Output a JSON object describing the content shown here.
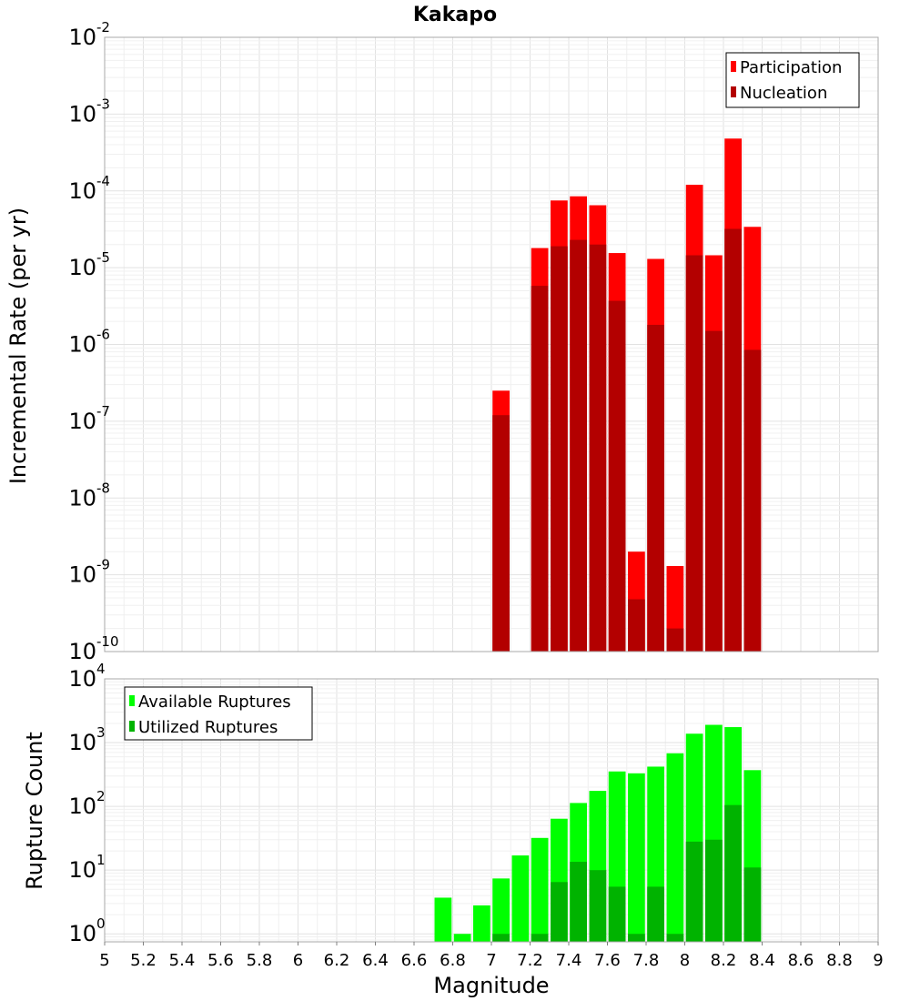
{
  "chart_data": [
    {
      "type": "bar",
      "title": "Kakapo",
      "ylabel": "Incremental Rate (per yr)",
      "yscale": "log",
      "ylim": [
        1e-10,
        0.01
      ],
      "xlim": [
        5,
        9
      ],
      "grid": true,
      "legend_position": "top-right",
      "y_ticks": [
        {
          "base": "10",
          "exp": "-2"
        },
        {
          "base": "10",
          "exp": "-3"
        },
        {
          "base": "10",
          "exp": "-4"
        },
        {
          "base": "10",
          "exp": "-5"
        },
        {
          "base": "10",
          "exp": "-6"
        },
        {
          "base": "10",
          "exp": "-7"
        },
        {
          "base": "10",
          "exp": "-8"
        },
        {
          "base": "10",
          "exp": "-9"
        },
        {
          "base": "10",
          "exp": "-10"
        }
      ],
      "x": [
        7.05,
        7.25,
        7.35,
        7.45,
        7.55,
        7.65,
        7.75,
        7.85,
        7.95,
        8.05,
        8.15,
        8.25,
        8.35
      ],
      "series": [
        {
          "name": "Participation",
          "color": "#ff0000",
          "values": [
            2.5e-07,
            1.8e-05,
            7.5e-05,
            8.5e-05,
            6.5e-05,
            1.55e-05,
            2e-09,
            1.3e-05,
            1.3e-09,
            0.00012,
            1.45e-05,
            0.00048,
            3.4e-05
          ]
        },
        {
          "name": "Nucleation",
          "color": "#b30000",
          "values": [
            1.2e-07,
            5.8e-06,
            1.9e-05,
            2.3e-05,
            2e-05,
            3.7e-06,
            4.8e-10,
            1.8e-06,
            2e-10,
            1.45e-05,
            1.5e-06,
            3.2e-05,
            8.5e-07
          ]
        }
      ]
    },
    {
      "type": "bar",
      "xlabel": "Magnitude",
      "ylabel": "Rupture Count",
      "yscale": "log",
      "ylim": [
        0.75,
        10000
      ],
      "xlim": [
        5,
        9
      ],
      "grid": true,
      "legend_position": "top-left",
      "y_ticks": [
        {
          "base": "10",
          "exp": "4"
        },
        {
          "base": "10",
          "exp": "3"
        },
        {
          "base": "10",
          "exp": "2"
        },
        {
          "base": "10",
          "exp": "1"
        },
        {
          "base": "10",
          "exp": "0"
        }
      ],
      "x_ticks": [
        "5",
        "5.2",
        "5.4",
        "5.6",
        "5.8",
        "6",
        "6.2",
        "6.4",
        "6.6",
        "6.8",
        "7",
        "7.2",
        "7.4",
        "7.6",
        "7.8",
        "8",
        "8.2",
        "8.4",
        "8.6",
        "8.8",
        "9"
      ],
      "x": [
        6.75,
        6.85,
        6.95,
        7.05,
        7.15,
        7.25,
        7.35,
        7.45,
        7.55,
        7.65,
        7.75,
        7.85,
        7.95,
        8.05,
        8.15,
        8.25,
        8.35
      ],
      "series": [
        {
          "name": "Available Ruptures",
          "color": "#00ff00",
          "values": [
            3.7,
            1,
            2.8,
            7.4,
            17,
            32,
            64,
            113,
            175,
            353,
            330,
            420,
            680,
            1380,
            1900,
            1750,
            370
          ]
        },
        {
          "name": "Utilized Ruptures",
          "color": "#00b300",
          "values": [
            0,
            0,
            0,
            1,
            0,
            1,
            6.5,
            13.5,
            10,
            5.5,
            1,
            5.5,
            1,
            28,
            30,
            105,
            11
          ]
        }
      ]
    }
  ]
}
